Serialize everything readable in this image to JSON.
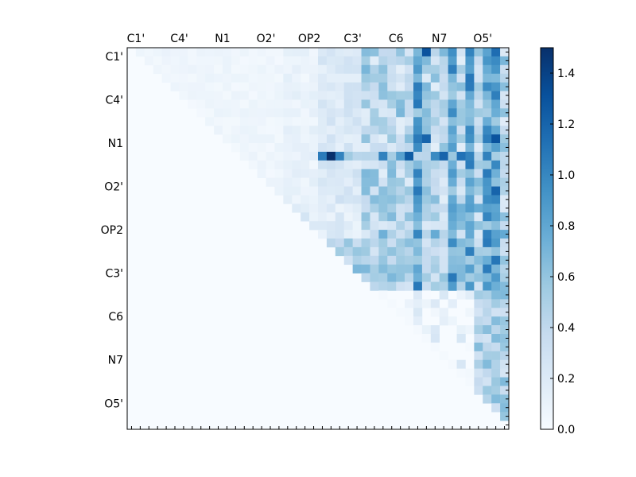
{
  "chart_data": {
    "type": "heatmap",
    "title": "",
    "xlabel": "",
    "ylabel": "",
    "x_tick_labels": [
      "C1'",
      "C4'",
      "N1",
      "O2'",
      "OP2",
      "C3'",
      "C6",
      "N7",
      "O5'"
    ],
    "y_tick_labels": [
      "C1'",
      "C4'",
      "N1",
      "O2'",
      "OP2",
      "C3'",
      "C6",
      "N7",
      "O5'"
    ],
    "x_tick_position": "top",
    "grid": false,
    "colormap": "Blues",
    "colors": {
      "low": "#f7fbff",
      "high": "#08306b"
    },
    "colorbar": {
      "position": "right",
      "range": [
        0.0,
        1.5
      ],
      "ticks": [
        "0.0",
        "0.2",
        "0.4",
        "0.6",
        "0.8",
        "1.0",
        "1.2",
        "1.4"
      ]
    },
    "n_rows": 44,
    "n_cols": 44,
    "matrix_description_values": [
      [
        0,
        0,
        0,
        0,
        0,
        0,
        0,
        0,
        0,
        0,
        0,
        0,
        0,
        0,
        0,
        0,
        0,
        0,
        0,
        0,
        0.05,
        0.05,
        0.1,
        0.15,
        0.1,
        0.1,
        0.15,
        0.3,
        0.25,
        0.35,
        0.55,
        0.6,
        0.7,
        0.55,
        0.4,
        0.3,
        0.25,
        0.95,
        0.85,
        0.2,
        0.75,
        0.3,
        1.0,
        0.6
      ],
      [
        0,
        0,
        0,
        0,
        0,
        0,
        0,
        0,
        0,
        0,
        0,
        0,
        0,
        0,
        0,
        0,
        0,
        0,
        0,
        0,
        0.05,
        0.05,
        0.1,
        0.15,
        0.1,
        0.1,
        0.15,
        0.3,
        0.25,
        0.35,
        0.55,
        0.6,
        0.7,
        0.55,
        0.4,
        0.3,
        0.25,
        0.95,
        0.85,
        0.2,
        0.75,
        0.3,
        1.0,
        0.6
      ]
    ]
  }
}
